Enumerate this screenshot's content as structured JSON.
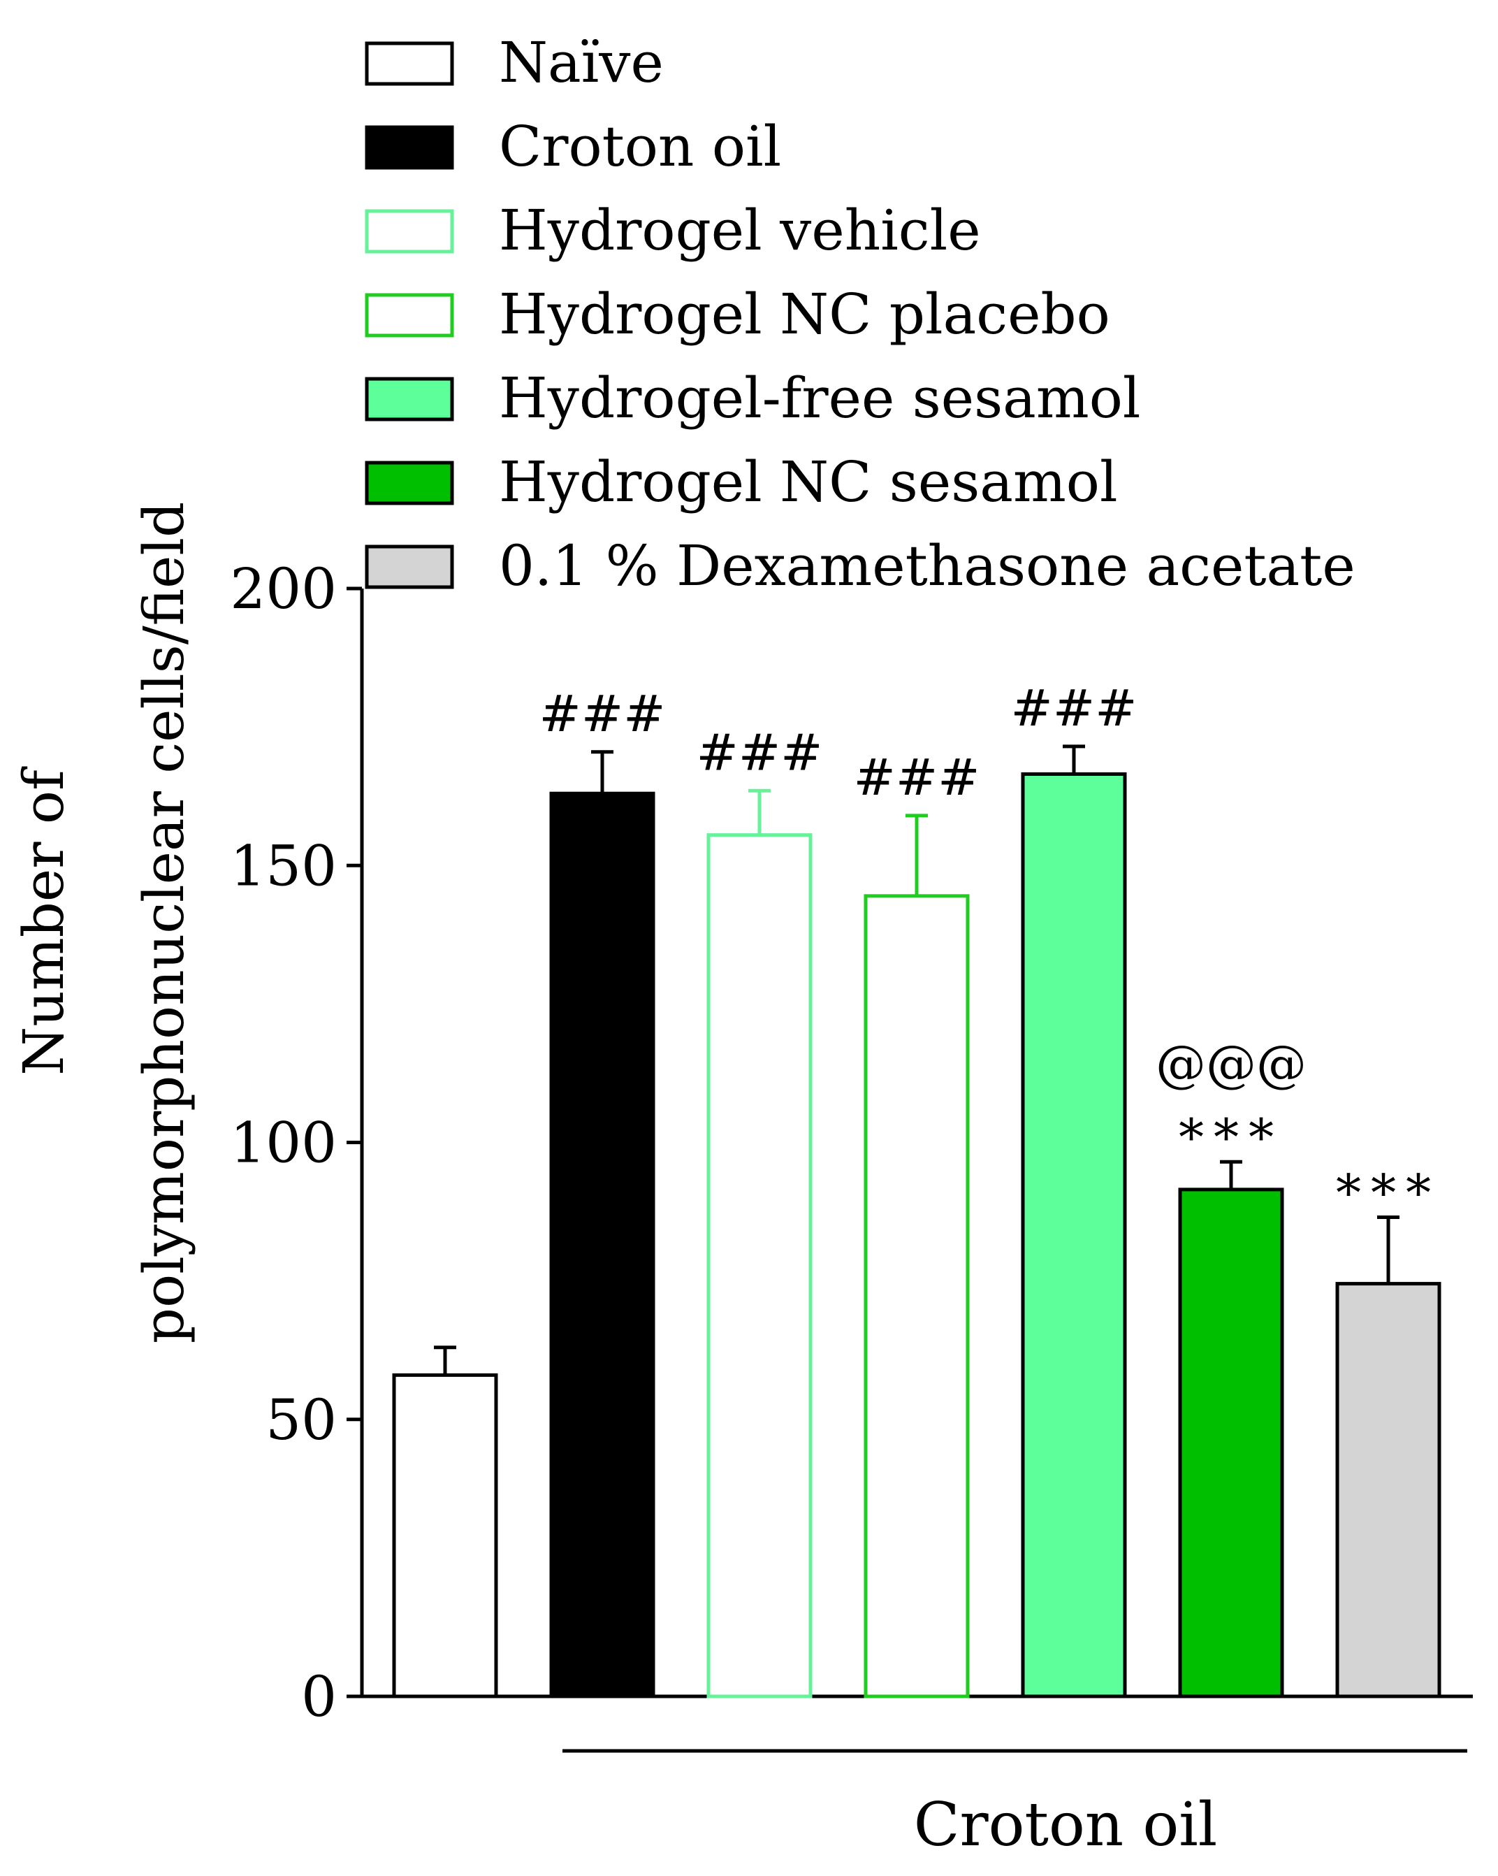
{
  "chart_data": {
    "type": "bar",
    "title": "",
    "ylabel_line1": "Number of",
    "ylabel_line2": "polymorphonuclear cells/field",
    "xlabel": "",
    "ylim": [
      0,
      200
    ],
    "yticks": [
      0,
      50,
      100,
      150,
      200
    ],
    "group_label": "Croton oil",
    "categories": [
      "Naïve",
      "Croton oil",
      "Hydrogel vehicle",
      "Hydrogel NC placebo",
      "Hydrogel-free sesamol",
      "Hydrogel NC sesamol",
      "0.1 % Dexamethasone acetate"
    ],
    "values": [
      58,
      163,
      155.5,
      144.5,
      166.5,
      91.5,
      74.5
    ],
    "errors": [
      5,
      7.5,
      8,
      14.5,
      5,
      5,
      12
    ],
    "annotations": [
      [],
      [
        "###"
      ],
      [
        "###"
      ],
      [
        "###"
      ],
      [
        "###"
      ],
      [
        "***",
        "@@@"
      ],
      [
        "***"
      ]
    ],
    "series_styles": [
      {
        "fill": "#ffffff",
        "stroke": "#000000"
      },
      {
        "fill": "#000000",
        "stroke": "#000000"
      },
      {
        "fill": "#ffffff",
        "stroke": "#66f299"
      },
      {
        "fill": "#ffffff",
        "stroke": "#1fcc1f"
      },
      {
        "fill": "#5cff99",
        "stroke": "#000000"
      },
      {
        "fill": "#00bf00",
        "stroke": "#000000"
      },
      {
        "fill": "#d4d4d4",
        "stroke": "#000000"
      }
    ]
  }
}
